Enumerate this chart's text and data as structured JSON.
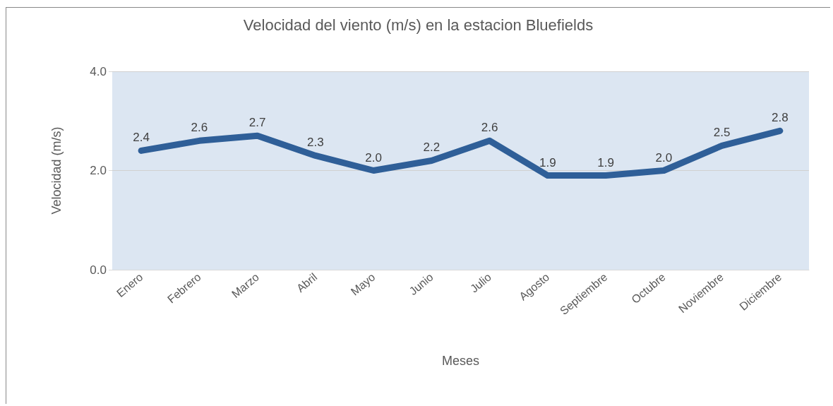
{
  "chart_data": {
    "type": "line",
    "title": "Velocidad del viento (m/s) en la estacion Bluefields",
    "xlabel": "Meses",
    "ylabel": "Velocidad (m/s)",
    "categories": [
      "Enero",
      "Febrero",
      "Marzo",
      "Abril",
      "Mayo",
      "Junio",
      "Julio",
      "Agosto",
      "Septiembre",
      "Octubre",
      "Noviembre",
      "Diciembre"
    ],
    "series": [
      {
        "color": "#2f5f98",
        "values": [
          2.4,
          2.6,
          2.7,
          2.3,
          2.0,
          2.2,
          2.6,
          1.9,
          1.9,
          2.0,
          2.5,
          2.8
        ],
        "value_labels": [
          "2.4",
          "2.6",
          "2.7",
          "2.3",
          "2.0",
          "2.2",
          "2.6",
          "1.9",
          "1.9",
          "2.0",
          "2.5",
          "2.8"
        ]
      }
    ],
    "ylim": [
      0,
      4
    ],
    "yticks": [
      {
        "value": 0,
        "label": "0.0"
      },
      {
        "value": 2,
        "label": "2.0"
      },
      {
        "value": 4,
        "label": "4.0"
      }
    ],
    "grid": "y",
    "marker": "none",
    "line_style": "solid"
  }
}
